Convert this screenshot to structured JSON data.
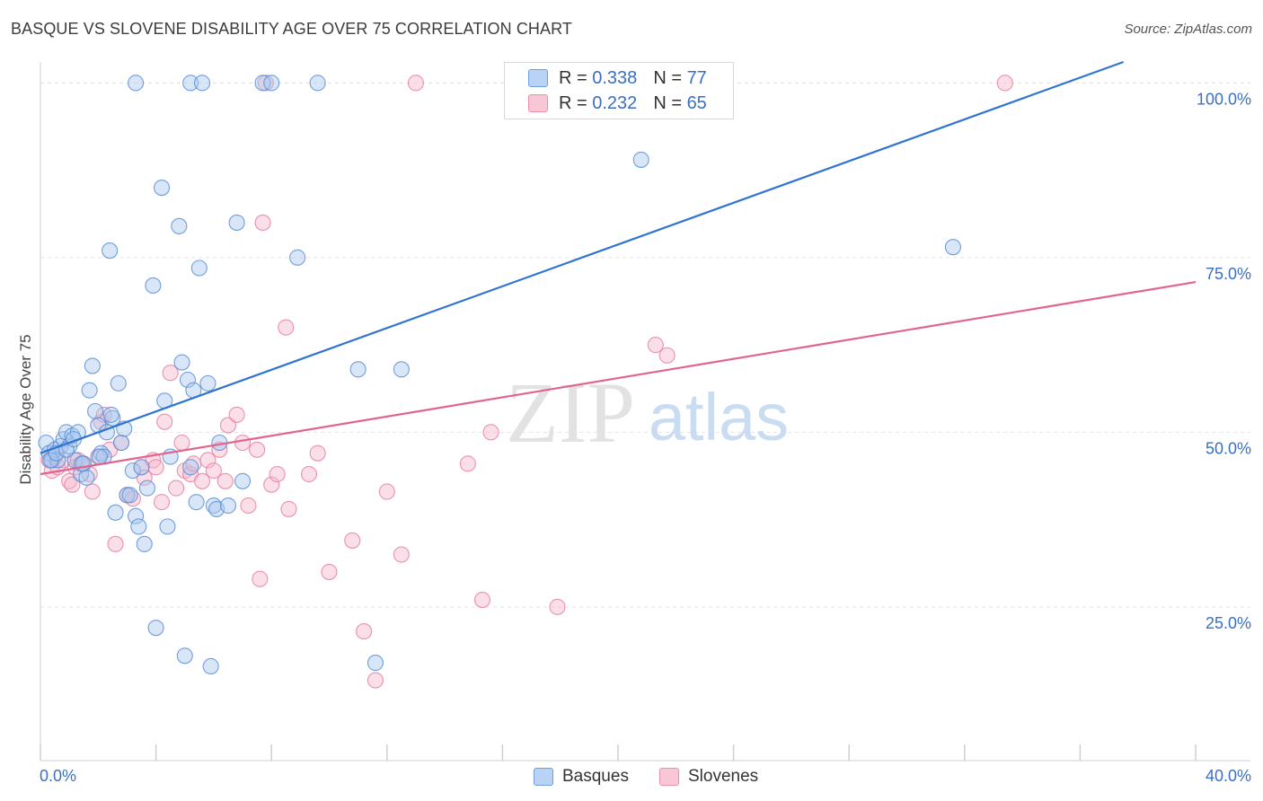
{
  "title": "BASQUE VS SLOVENE DISABILITY AGE OVER 75 CORRELATION CHART",
  "source": "Source: ZipAtlas.com",
  "watermark": {
    "zip": "ZIP",
    "atlas": "atlas"
  },
  "legend": {
    "r_label": "R =",
    "n_label": "N =",
    "basques": {
      "r": "0.338",
      "n": "77"
    },
    "slovenes": {
      "r": "0.232",
      "n": "65"
    }
  },
  "colors": {
    "basque_fill": "#a8c8f0",
    "basque_stroke": "#5b8fd6",
    "basque_line": "#2f74d0",
    "slovene_fill": "#f7b8cb",
    "slovene_stroke": "#e8809f",
    "slovene_line": "#e2648d",
    "axis_text": "#3a6fc4"
  },
  "chart_data": {
    "type": "scatter",
    "title": "BASQUE VS SLOVENE DISABILITY AGE OVER 75 CORRELATION CHART",
    "xlabel": "",
    "ylabel": "Disability Age Over 75",
    "xlim": [
      0,
      40
    ],
    "ylim": [
      3,
      103
    ],
    "x_tick_labels": [
      "0.0%",
      "40.0%"
    ],
    "y_ticks": [
      25,
      50,
      75,
      100
    ],
    "y_tick_labels": [
      "25.0%",
      "50.0%",
      "75.0%",
      "100.0%"
    ],
    "series": [
      {
        "name": "Basques",
        "r": 0.338,
        "n": 77,
        "trend": {
          "x0": 0,
          "y0": 47.0,
          "x1": 37.5,
          "y1": 103.0
        },
        "points": [
          [
            0.2,
            48.5
          ],
          [
            0.3,
            47
          ],
          [
            0.4,
            46
          ],
          [
            0.5,
            47.5
          ],
          [
            0.6,
            46
          ],
          [
            0.7,
            48
          ],
          [
            0.8,
            49
          ],
          [
            0.9,
            50
          ],
          [
            1.0,
            48
          ],
          [
            1.1,
            49.5
          ],
          [
            1.2,
            46
          ],
          [
            1.3,
            50
          ],
          [
            1.4,
            44
          ],
          [
            1.5,
            45.5
          ],
          [
            1.6,
            43.5
          ],
          [
            1.7,
            56
          ],
          [
            1.8,
            59.5
          ],
          [
            1.9,
            53
          ],
          [
            2.0,
            51
          ],
          [
            2.1,
            47
          ],
          [
            2.2,
            46.5
          ],
          [
            2.3,
            50
          ],
          [
            2.4,
            76
          ],
          [
            2.5,
            52
          ],
          [
            2.6,
            38.5
          ],
          [
            2.7,
            57
          ],
          [
            2.8,
            48.5
          ],
          [
            2.9,
            50.5
          ],
          [
            3.0,
            41
          ],
          [
            3.1,
            41
          ],
          [
            3.2,
            44.5
          ],
          [
            3.3,
            38
          ],
          [
            3.4,
            36.5
          ],
          [
            3.5,
            45
          ],
          [
            3.6,
            34
          ],
          [
            3.7,
            42
          ],
          [
            3.3,
            100
          ],
          [
            3.9,
            71
          ],
          [
            4.0,
            22
          ],
          [
            4.2,
            85
          ],
          [
            4.3,
            54.5
          ],
          [
            4.4,
            36.5
          ],
          [
            4.5,
            46.5
          ],
          [
            4.8,
            79.5
          ],
          [
            4.9,
            60
          ],
          [
            5.0,
            18
          ],
          [
            5.1,
            57.5
          ],
          [
            5.2,
            45
          ],
          [
            5.3,
            56
          ],
          [
            5.4,
            40
          ],
          [
            5.2,
            100
          ],
          [
            5.5,
            73.5
          ],
          [
            5.6,
            100
          ],
          [
            5.8,
            57
          ],
          [
            5.9,
            16.5
          ],
          [
            6.0,
            39.5
          ],
          [
            6.1,
            39
          ],
          [
            6.2,
            48.5
          ],
          [
            6.5,
            39.5
          ],
          [
            6.8,
            80
          ],
          [
            7.0,
            43
          ],
          [
            7.7,
            100
          ],
          [
            8.0,
            100
          ],
          [
            8.9,
            75
          ],
          [
            9.6,
            100
          ],
          [
            11.0,
            59
          ],
          [
            11.6,
            17
          ],
          [
            12.5,
            59
          ],
          [
            20.8,
            89
          ],
          [
            31.6,
            76.5
          ],
          [
            0.35,
            46
          ],
          [
            0.55,
            47
          ],
          [
            0.9,
            47.5
          ],
          [
            1.15,
            49
          ],
          [
            1.45,
            45.5
          ],
          [
            2.05,
            46.5
          ],
          [
            2.45,
            52.5
          ]
        ]
      },
      {
        "name": "Slovenes",
        "r": 0.232,
        "n": 65,
        "trend": {
          "x0": 0,
          "y0": 44.0,
          "x1": 40,
          "y1": 71.5
        },
        "points": [
          [
            0.3,
            46
          ],
          [
            0.4,
            44.5
          ],
          [
            0.5,
            46.5
          ],
          [
            0.6,
            45
          ],
          [
            0.8,
            46
          ],
          [
            1.0,
            43
          ],
          [
            1.1,
            42.5
          ],
          [
            1.2,
            45
          ],
          [
            1.3,
            46
          ],
          [
            1.4,
            45.5
          ],
          [
            1.7,
            44
          ],
          [
            1.8,
            41.5
          ],
          [
            2.0,
            46.5
          ],
          [
            2.1,
            51.5
          ],
          [
            2.2,
            52.5
          ],
          [
            2.4,
            47.5
          ],
          [
            2.6,
            34
          ],
          [
            2.8,
            48.5
          ],
          [
            3.0,
            41
          ],
          [
            3.2,
            40.5
          ],
          [
            3.5,
            45
          ],
          [
            3.6,
            43.5
          ],
          [
            3.9,
            46
          ],
          [
            4.0,
            45
          ],
          [
            4.2,
            40
          ],
          [
            4.3,
            51.5
          ],
          [
            4.5,
            58.5
          ],
          [
            4.7,
            42
          ],
          [
            4.9,
            48.5
          ],
          [
            5.0,
            44.5
          ],
          [
            5.2,
            44
          ],
          [
            5.3,
            45.5
          ],
          [
            5.6,
            43
          ],
          [
            5.8,
            46
          ],
          [
            6.0,
            44.5
          ],
          [
            6.2,
            47.5
          ],
          [
            6.4,
            43
          ],
          [
            6.5,
            51
          ],
          [
            6.8,
            52.5
          ],
          [
            7.0,
            48.5
          ],
          [
            7.2,
            39.5
          ],
          [
            7.5,
            47.5
          ],
          [
            7.6,
            29
          ],
          [
            7.7,
            80
          ],
          [
            8.0,
            42.5
          ],
          [
            8.2,
            44
          ],
          [
            8.5,
            65
          ],
          [
            8.6,
            39
          ],
          [
            9.3,
            44
          ],
          [
            9.6,
            47
          ],
          [
            10.0,
            30
          ],
          [
            10.8,
            34.5
          ],
          [
            11.2,
            21.5
          ],
          [
            11.6,
            14.5
          ],
          [
            12.0,
            41.5
          ],
          [
            12.5,
            32.5
          ],
          [
            13.0,
            100
          ],
          [
            14.8,
            45.5
          ],
          [
            15.3,
            26
          ],
          [
            15.6,
            50
          ],
          [
            17.9,
            25
          ],
          [
            21.3,
            62.5
          ],
          [
            21.7,
            61
          ],
          [
            33.4,
            100
          ],
          [
            7.8,
            100
          ]
        ]
      }
    ]
  }
}
